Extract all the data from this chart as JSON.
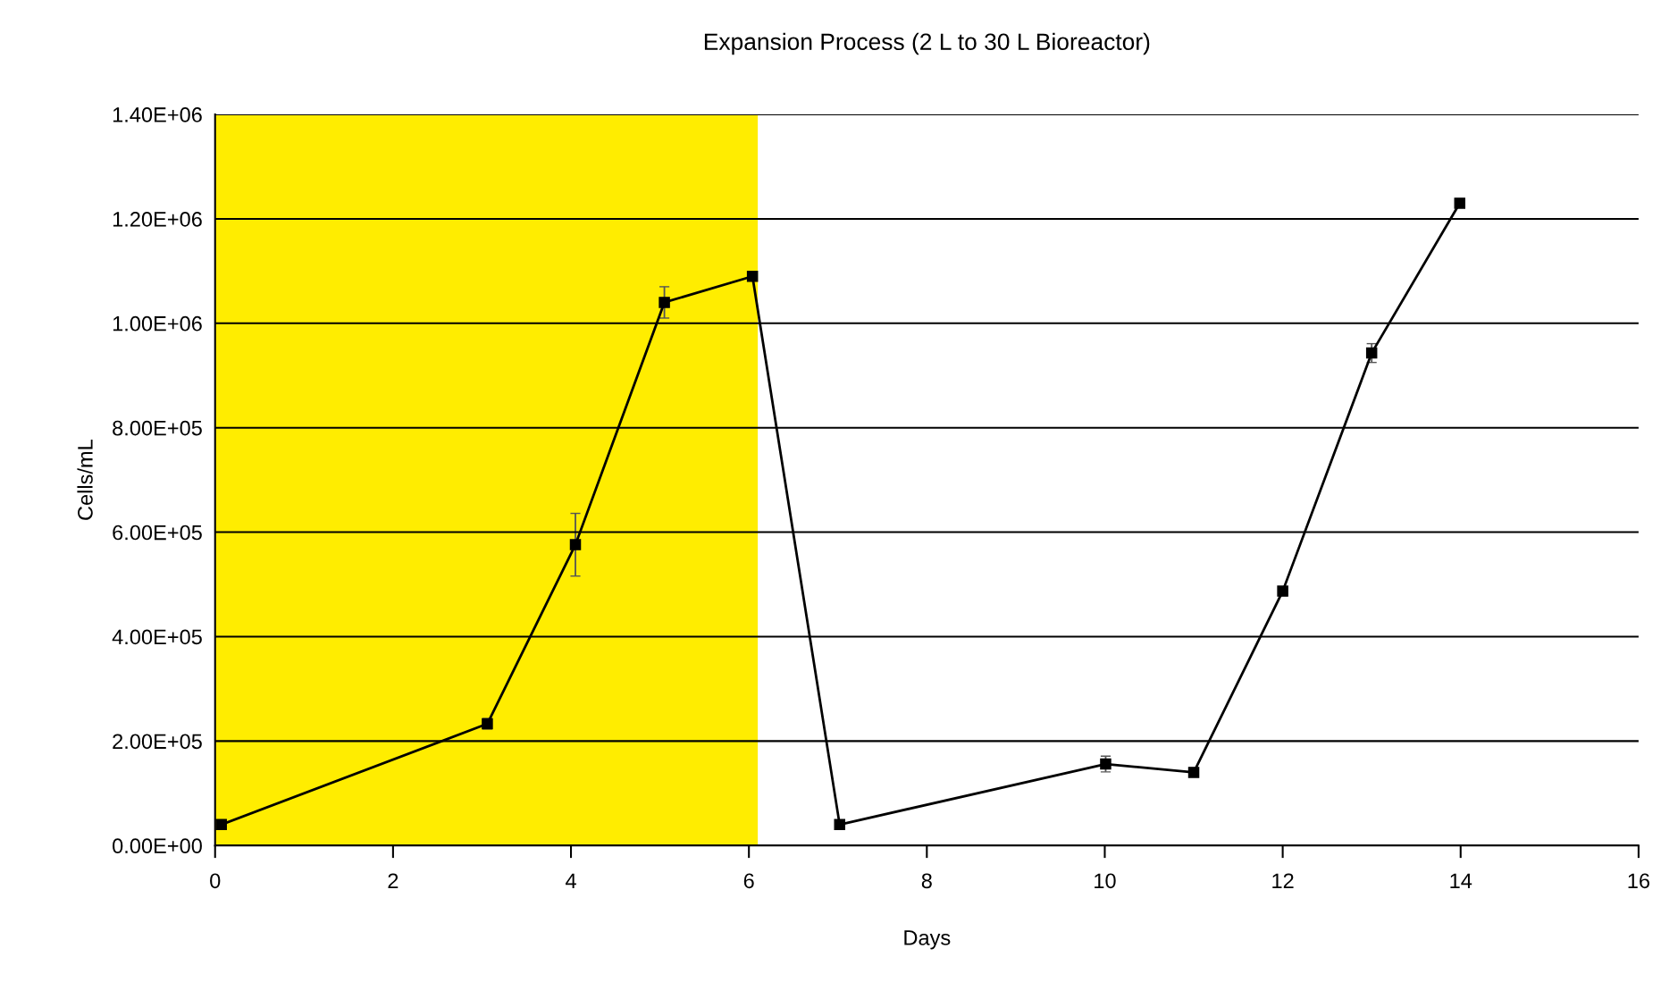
{
  "chart_data": {
    "type": "line",
    "title": "Expansion Process (2 L to 30 L Bioreactor)",
    "xlabel": "Days",
    "ylabel": "Cells/mL",
    "x": [
      0.07,
      3.06,
      4.05,
      5.05,
      6.04,
      7.02,
      10.01,
      11.0,
      12.0,
      13.0,
      13.99
    ],
    "series": [
      {
        "color": "#000000",
        "values": [
          40000,
          233000,
          576000,
          1040000,
          1090000,
          40000,
          156000,
          140000,
          487000,
          943000,
          1230000
        ],
        "errors": [
          null,
          10000,
          60000,
          30000,
          null,
          null,
          15000,
          null,
          null,
          18000,
          null
        ]
      }
    ],
    "xlim": [
      0,
      16
    ],
    "xticks": [
      0,
      2,
      4,
      6,
      8,
      10,
      12,
      14,
      16
    ],
    "ylim": [
      0,
      1400000
    ],
    "yticks": [
      {
        "value": 0,
        "label": "0.00E+00"
      },
      {
        "value": 200000,
        "label": "2.00E+05"
      },
      {
        "value": 400000,
        "label": "4.00E+05"
      },
      {
        "value": 600000,
        "label": "6.00E+05"
      },
      {
        "value": 800000,
        "label": "8.00E+05"
      },
      {
        "value": 1000000,
        "label": "1.00E+06"
      },
      {
        "value": 1200000,
        "label": "1.20E+06"
      },
      {
        "value": 1400000,
        "label": "1.40E+06"
      }
    ],
    "bands": [
      {
        "axis": "x",
        "from": 0,
        "to": 6.1,
        "color": "#ffed00"
      }
    ],
    "grid": "y",
    "marker": "square",
    "line_style": "solid",
    "legend": false
  }
}
